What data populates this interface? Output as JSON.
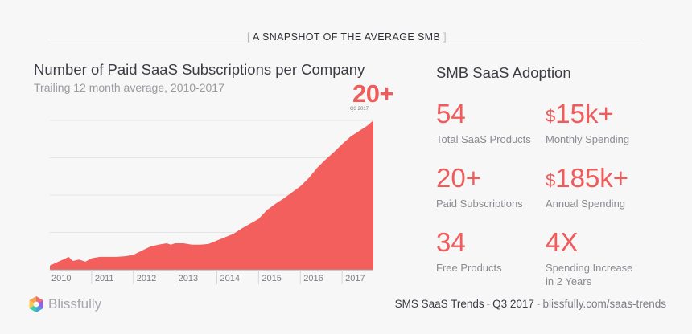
{
  "banner": {
    "bracket_left": "[",
    "text": "A SNAPSHOT OF THE AVERAGE SMB",
    "bracket_right": "]"
  },
  "chart": {
    "title": "Number of Paid SaaS Subscriptions per Company",
    "subtitle": "Trailing 12 month average, 2010-2017",
    "callout_value": "20+",
    "callout_label": "Q3 2017"
  },
  "chart_data": {
    "type": "area",
    "title": "Number of Paid SaaS Subscriptions per Company",
    "subtitle": "Trailing 12 month average, 2010-2017",
    "x_tick_labels": [
      "2010",
      "2011",
      "2012",
      "2013",
      "2014",
      "2015",
      "2016",
      "2017"
    ],
    "x_range": [
      2010.0,
      2017.75
    ],
    "y_range": [
      0,
      22
    ],
    "grid": true,
    "color": "#f25f5c",
    "x": [
      2010.0,
      2010.2,
      2010.35,
      2010.45,
      2010.55,
      2010.7,
      2010.85,
      2011.0,
      2011.2,
      2011.4,
      2011.6,
      2011.8,
      2012.0,
      2012.2,
      2012.4,
      2012.6,
      2012.8,
      2012.9,
      2013.0,
      2013.2,
      2013.4,
      2013.6,
      2013.8,
      2014.0,
      2014.2,
      2014.4,
      2014.6,
      2014.8,
      2015.0,
      2015.2,
      2015.4,
      2015.6,
      2015.8,
      2016.0,
      2016.2,
      2016.4,
      2016.6,
      2016.8,
      2017.0,
      2017.2,
      2017.4,
      2017.6,
      2017.75
    ],
    "y": [
      0.6,
      1.2,
      1.6,
      1.9,
      1.3,
      1.5,
      1.2,
      1.7,
      1.9,
      1.9,
      1.9,
      2.0,
      2.2,
      2.8,
      3.4,
      3.7,
      3.9,
      3.7,
      3.9,
      3.9,
      3.7,
      3.7,
      3.8,
      4.3,
      4.8,
      5.3,
      6.1,
      6.8,
      7.5,
      8.8,
      9.7,
      10.5,
      11.4,
      12.3,
      13.5,
      15.0,
      16.2,
      17.3,
      18.5,
      19.6,
      20.4,
      21.2,
      22.0
    ]
  },
  "adoption": {
    "title": "SMB SaaS Adoption",
    "stats": [
      {
        "prefix": "",
        "value": "54",
        "label": "Total SaaS Products"
      },
      {
        "prefix": "$",
        "value": "15k+",
        "label": "Monthly Spending"
      },
      {
        "prefix": "",
        "value": "20+",
        "label": "Paid Subscriptions"
      },
      {
        "prefix": "$",
        "value": "185k+",
        "label": "Annual Spending"
      },
      {
        "prefix": "",
        "value": "34",
        "label": "Free Products"
      },
      {
        "prefix": "",
        "value": "4X",
        "label": "Spending Increase in 2 Years"
      }
    ]
  },
  "footer": {
    "brand": "Blissfully",
    "report": "SMS SaaS Trends",
    "separator": "-",
    "period": "Q3 2017",
    "url": "blissfully.com/saas-trends"
  },
  "colors": {
    "accent": "#f05b5b",
    "area": "#f25f5c",
    "background": "#f7f7f7"
  },
  "icons": {
    "brand_logo": "blissfully-logo-icon"
  }
}
